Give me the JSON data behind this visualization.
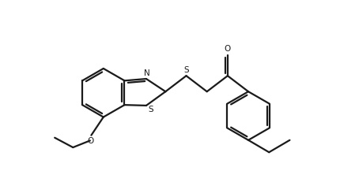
{
  "bg_color": "#ffffff",
  "line_color": "#1a1a1a",
  "line_width": 1.6,
  "figsize": [
    4.31,
    2.17
  ],
  "dpi": 100,
  "xlim": [
    -1.0,
    9.5
  ],
  "ylim": [
    -3.5,
    3.5
  ]
}
